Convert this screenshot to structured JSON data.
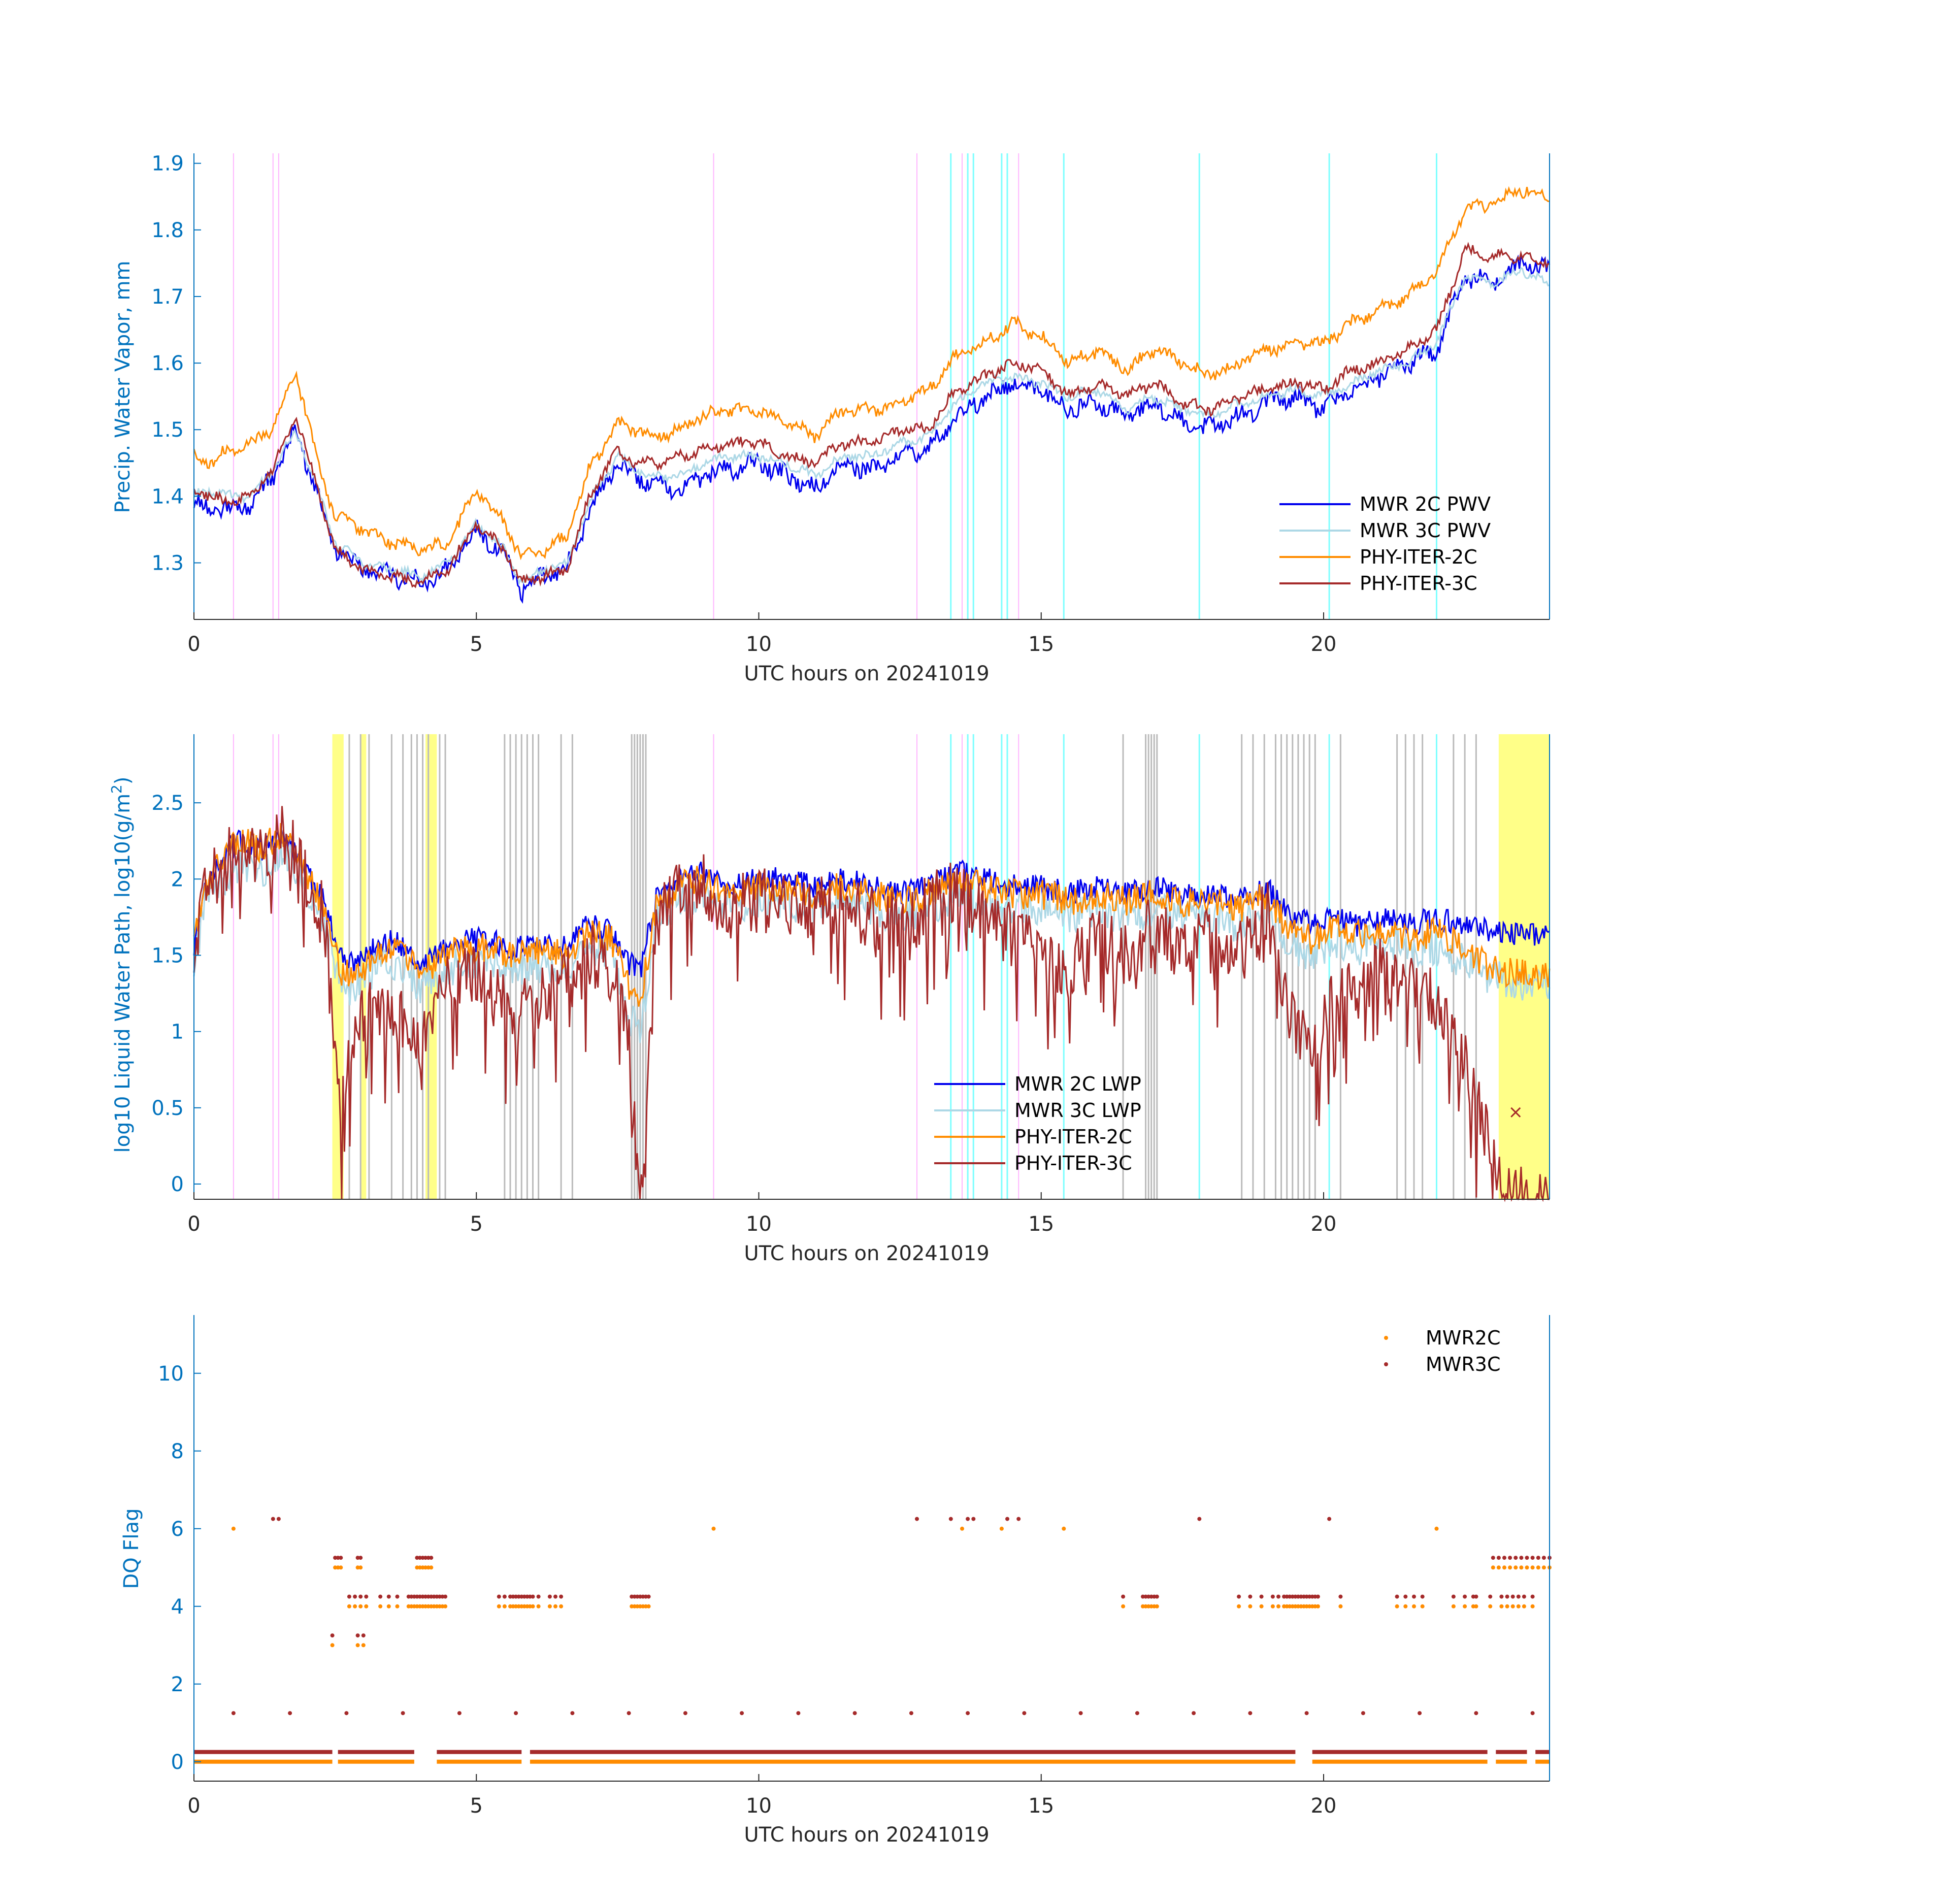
{
  "colors": {
    "mwr2c": "#0000ee",
    "mwr3c": "#add8e6",
    "phy2c": "#ff8c00",
    "phy3c": "#a52a2a",
    "axis_label": "#0072bd",
    "cyan_marker": "#7fffff",
    "pink_marker": "#ffb6ff",
    "gray_marker": "#bbbbbb",
    "yellow_marker": "#ffff55"
  },
  "chart_data": [
    {
      "id": "pwv",
      "type": "line",
      "xlabel": "UTC hours on 20241019",
      "ylabel": "Precip. Water Vapor, mm",
      "xlim": [
        0,
        24
      ],
      "ylim": [
        1.215,
        1.915
      ],
      "xticks": [
        0,
        5,
        10,
        15,
        20
      ],
      "yticks": [
        1.3,
        1.4,
        1.5,
        1.6,
        1.7,
        1.8,
        1.9
      ],
      "grid": false,
      "legend": "bottom-right",
      "x": [
        0,
        0.3,
        0.6,
        1.0,
        1.4,
        1.8,
        2.2,
        2.5,
        3.0,
        3.5,
        4.0,
        4.5,
        5.0,
        5.5,
        5.8,
        6.2,
        6.6,
        7.0,
        7.5,
        7.8,
        8.2,
        8.6,
        9.0,
        9.5,
        10.0,
        10.5,
        11.0,
        11.5,
        12.0,
        12.5,
        13.0,
        13.5,
        14.0,
        14.5,
        15.0,
        15.5,
        16.0,
        16.5,
        17.0,
        17.5,
        18.0,
        18.5,
        19.0,
        19.5,
        20.0,
        20.5,
        21.0,
        21.5,
        22.0,
        22.5,
        23.0,
        23.5,
        24.0
      ],
      "series": [
        {
          "name": "MWR 2C PWV",
          "color_key": "mwr2c",
          "values": [
            1.39,
            1.38,
            1.38,
            1.39,
            1.43,
            1.5,
            1.4,
            1.32,
            1.29,
            1.28,
            1.27,
            1.29,
            1.35,
            1.31,
            1.26,
            1.28,
            1.29,
            1.38,
            1.45,
            1.43,
            1.42,
            1.41,
            1.43,
            1.44,
            1.45,
            1.43,
            1.41,
            1.45,
            1.44,
            1.46,
            1.47,
            1.52,
            1.55,
            1.57,
            1.56,
            1.53,
            1.54,
            1.52,
            1.54,
            1.51,
            1.5,
            1.52,
            1.54,
            1.55,
            1.53,
            1.56,
            1.58,
            1.6,
            1.62,
            1.73,
            1.72,
            1.75,
            1.74
          ]
        },
        {
          "name": "MWR 3C PWV",
          "color_key": "mwr3c",
          "values": [
            1.4,
            1.41,
            1.4,
            1.4,
            1.44,
            1.5,
            1.41,
            1.33,
            1.3,
            1.29,
            1.28,
            1.3,
            1.36,
            1.32,
            1.27,
            1.29,
            1.3,
            1.39,
            1.46,
            1.44,
            1.43,
            1.43,
            1.45,
            1.46,
            1.46,
            1.45,
            1.43,
            1.46,
            1.46,
            1.48,
            1.49,
            1.54,
            1.57,
            1.58,
            1.57,
            1.55,
            1.56,
            1.53,
            1.55,
            1.53,
            1.52,
            1.54,
            1.55,
            1.56,
            1.55,
            1.57,
            1.59,
            1.6,
            1.63,
            1.73,
            1.72,
            1.74,
            1.72
          ]
        },
        {
          "name": "PHY-ITER-2C",
          "color_key": "phy2c",
          "values": [
            1.46,
            1.45,
            1.47,
            1.48,
            1.5,
            1.59,
            1.45,
            1.37,
            1.35,
            1.33,
            1.32,
            1.33,
            1.41,
            1.36,
            1.31,
            1.32,
            1.34,
            1.44,
            1.51,
            1.5,
            1.49,
            1.5,
            1.52,
            1.53,
            1.53,
            1.51,
            1.49,
            1.53,
            1.53,
            1.54,
            1.56,
            1.61,
            1.63,
            1.66,
            1.64,
            1.6,
            1.62,
            1.59,
            1.62,
            1.6,
            1.58,
            1.6,
            1.62,
            1.63,
            1.63,
            1.66,
            1.68,
            1.7,
            1.74,
            1.83,
            1.84,
            1.86,
            1.85
          ]
        },
        {
          "name": "PHY-ITER-3C",
          "color_key": "phy3c",
          "values": [
            1.41,
            1.4,
            1.39,
            1.4,
            1.44,
            1.52,
            1.41,
            1.32,
            1.29,
            1.28,
            1.27,
            1.29,
            1.36,
            1.32,
            1.27,
            1.28,
            1.29,
            1.4,
            1.47,
            1.45,
            1.45,
            1.46,
            1.47,
            1.48,
            1.48,
            1.46,
            1.45,
            1.48,
            1.48,
            1.5,
            1.5,
            1.56,
            1.58,
            1.6,
            1.59,
            1.55,
            1.57,
            1.55,
            1.57,
            1.54,
            1.53,
            1.55,
            1.56,
            1.57,
            1.56,
            1.59,
            1.6,
            1.62,
            1.65,
            1.77,
            1.76,
            1.76,
            1.75
          ]
        }
      ],
      "vlines_cyan": [
        13.4,
        13.7,
        13.8,
        14.3,
        14.4,
        15.4,
        17.8,
        20.1,
        22.0
      ],
      "vlines_pink": [
        0.7,
        1.4,
        1.5,
        9.2,
        12.8,
        13.6,
        14.6
      ]
    },
    {
      "id": "lwp",
      "type": "line",
      "xlabel": "UTC hours on 20241019",
      "ylabel": "log10 Liquid Water Path, log10(g/m",
      "ylabel_sup": "2",
      "ylabel_tail": ")",
      "xlim": [
        0,
        24
      ],
      "ylim": [
        -0.1,
        2.95
      ],
      "xticks": [
        0,
        5,
        10,
        15,
        20
      ],
      "yticks": [
        0,
        0.5,
        1,
        1.5,
        2,
        2.5
      ],
      "grid": false,
      "legend": "bottom-center",
      "x": [
        0,
        0.2,
        0.5,
        0.8,
        1.2,
        1.6,
        1.9,
        2.3,
        2.6,
        2.8,
        3.2,
        3.6,
        4.0,
        4.3,
        4.7,
        5.2,
        5.6,
        6.0,
        6.5,
        7.0,
        7.4,
        7.7,
        7.9,
        8.2,
        8.6,
        9.0,
        9.5,
        10.0,
        10.5,
        11.0,
        11.5,
        12.0,
        12.5,
        13.0,
        13.5,
        14.0,
        14.5,
        15.0,
        15.5,
        16.0,
        16.5,
        17.0,
        17.5,
        18.0,
        18.5,
        19.0,
        19.4,
        19.8,
        20.2,
        20.6,
        21.0,
        21.5,
        22.0,
        22.5,
        23.0,
        23.5,
        24.0
      ],
      "series": [
        {
          "name": "MWR 2C LWP",
          "color_key": "mwr2c",
          "values": [
            1.55,
            1.95,
            2.15,
            2.25,
            2.2,
            2.3,
            2.1,
            1.85,
            1.5,
            1.45,
            1.55,
            1.6,
            1.45,
            1.5,
            1.6,
            1.6,
            1.55,
            1.6,
            1.55,
            1.7,
            1.65,
            1.45,
            1.4,
            1.9,
            2.0,
            2.05,
            1.95,
            2.0,
            2.0,
            1.95,
            2.0,
            1.95,
            1.9,
            1.95,
            2.05,
            2.0,
            1.95,
            1.95,
            1.9,
            1.95,
            1.9,
            1.95,
            1.9,
            1.9,
            1.85,
            1.95,
            1.75,
            1.7,
            1.75,
            1.7,
            1.75,
            1.7,
            1.75,
            1.7,
            1.65,
            1.63,
            1.63
          ]
        },
        {
          "name": "MWR 3C LWP",
          "color_key": "mwr3c",
          "values": [
            1.4,
            1.85,
            2.0,
            2.1,
            2.05,
            2.2,
            2.0,
            1.7,
            1.3,
            1.25,
            1.4,
            1.45,
            1.3,
            1.35,
            1.45,
            1.45,
            1.4,
            1.45,
            1.4,
            1.55,
            1.5,
            1.1,
            1.0,
            1.75,
            1.85,
            1.9,
            1.8,
            1.85,
            1.85,
            1.8,
            1.85,
            1.8,
            1.75,
            1.8,
            1.9,
            1.85,
            1.8,
            1.8,
            1.75,
            1.8,
            1.75,
            1.8,
            1.75,
            1.75,
            1.7,
            1.8,
            1.55,
            1.5,
            1.6,
            1.55,
            1.6,
            1.55,
            1.55,
            1.45,
            1.35,
            1.32,
            1.3
          ]
        },
        {
          "name": "PHY-ITER-2C",
          "color_key": "phy2c",
          "values": [
            1.6,
            1.95,
            2.15,
            2.25,
            2.2,
            2.3,
            2.1,
            1.8,
            1.4,
            1.35,
            1.5,
            1.55,
            1.4,
            1.45,
            1.55,
            1.55,
            1.5,
            1.55,
            1.5,
            1.65,
            1.6,
            1.3,
            1.2,
            1.85,
            1.95,
            2.0,
            1.9,
            1.95,
            1.95,
            1.9,
            1.95,
            1.9,
            1.85,
            1.9,
            2.0,
            1.95,
            1.9,
            1.9,
            1.85,
            1.9,
            1.85,
            1.9,
            1.85,
            1.85,
            1.8,
            1.9,
            1.65,
            1.6,
            1.7,
            1.65,
            1.65,
            1.6,
            1.65,
            1.55,
            1.4,
            1.38,
            1.37
          ]
        },
        {
          "name": "PHY-ITER-3C",
          "color_key": "phy3c",
          "values": [
            1.55,
            1.9,
            2.1,
            2.2,
            2.15,
            2.3,
            2.05,
            1.75,
            0.4,
            1.0,
            1.2,
            1.1,
            0.9,
            1.2,
            1.4,
            1.3,
            1.1,
            1.2,
            1.3,
            1.5,
            1.4,
            0.9,
            -0.1,
            1.8,
            1.9,
            1.95,
            1.8,
            1.85,
            1.85,
            1.8,
            1.85,
            1.75,
            1.7,
            1.8,
            1.95,
            1.8,
            1.6,
            1.5,
            1.4,
            1.6,
            1.5,
            1.7,
            1.5,
            1.6,
            1.5,
            1.8,
            1.1,
            0.9,
            1.3,
            1.2,
            1.4,
            1.3,
            1.2,
            0.8,
            0.2,
            -0.1,
            -0.1
          ]
        }
      ],
      "vlines_cyan": [
        13.4,
        13.7,
        13.8,
        14.3,
        14.4,
        15.4,
        17.8,
        20.1,
        22.0
      ],
      "vlines_pink": [
        0.7,
        1.4,
        1.5,
        9.2,
        12.8,
        13.6,
        14.6
      ],
      "vlines_gray": [
        2.75,
        2.95,
        3.1,
        3.5,
        3.7,
        3.85,
        3.95,
        4.05,
        4.15,
        4.35,
        4.45,
        5.5,
        5.6,
        5.7,
        5.8,
        5.9,
        6.0,
        6.1,
        6.5,
        6.7,
        7.75,
        7.8,
        7.85,
        7.9,
        7.95,
        8.0,
        16.45,
        16.85,
        16.9,
        16.95,
        17.0,
        17.05,
        18.55,
        18.75,
        18.95,
        19.15,
        19.25,
        19.35,
        19.45,
        19.55,
        19.65,
        19.75,
        19.85,
        20.3,
        21.3,
        21.45,
        21.6,
        21.75,
        22.3,
        22.5,
        22.7
      ],
      "yellow_bands": [
        [
          2.45,
          2.65
        ],
        [
          2.95,
          3.05
        ],
        [
          4.1,
          4.3
        ],
        [
          23.1,
          24.0
        ]
      ],
      "marker_x": {
        "x": 23.4,
        "y": 0.47
      }
    },
    {
      "id": "dq",
      "type": "scatter",
      "xlabel": "UTC hours on 20241019",
      "ylabel": "DQ Flag",
      "xlim": [
        0,
        24
      ],
      "ylim": [
        -0.5,
        11.5
      ],
      "xticks": [
        0,
        5,
        10,
        15,
        20
      ],
      "yticks": [
        0,
        2,
        4,
        6,
        8,
        10
      ],
      "grid": false,
      "legend": "top-right",
      "series": [
        {
          "name": "MWR2C",
          "color_key": "phy2c"
        },
        {
          "name": "MWR3C",
          "color_key": "phy3c"
        }
      ],
      "flag0_gaps": [
        [
          2.45,
          2.55
        ],
        [
          3.9,
          4.3
        ],
        [
          5.8,
          5.95
        ],
        [
          19.5,
          19.8
        ],
        [
          22.9,
          23.05
        ],
        [
          23.6,
          23.75
        ]
      ],
      "flag1_x": [
        0.7,
        1.7,
        2.7,
        3.7,
        4.7,
        5.7,
        6.7,
        7.7,
        8.7,
        9.7,
        10.7,
        11.7,
        12.7,
        13.7,
        14.7,
        15.7,
        16.7,
        17.7,
        18.7,
        19.7,
        20.7,
        21.7,
        22.7,
        23.7
      ],
      "flag3_x": [
        2.45,
        2.9,
        3.0
      ],
      "flag4_x": [
        2.75,
        2.85,
        2.95,
        3.05,
        3.3,
        3.45,
        3.6,
        3.8,
        3.85,
        3.9,
        3.95,
        4.0,
        4.05,
        4.1,
        4.15,
        4.2,
        4.25,
        4.3,
        4.35,
        4.4,
        4.45,
        5.4,
        5.5,
        5.6,
        5.65,
        5.7,
        5.75,
        5.8,
        5.85,
        5.9,
        5.95,
        6.0,
        6.1,
        6.3,
        6.4,
        6.5,
        7.75,
        7.8,
        7.85,
        7.9,
        7.95,
        8.0,
        8.05,
        16.45,
        16.8,
        16.85,
        16.9,
        16.95,
        17.0,
        17.05,
        18.5,
        18.7,
        18.9,
        19.1,
        19.2,
        19.3,
        19.35,
        19.4,
        19.45,
        19.5,
        19.55,
        19.6,
        19.65,
        19.7,
        19.75,
        19.8,
        19.85,
        19.9,
        20.3,
        21.3,
        21.45,
        21.6,
        21.75,
        22.3,
        22.5,
        22.65,
        22.7,
        22.95,
        23.15,
        23.25,
        23.35,
        23.45,
        23.55,
        23.7
      ],
      "flag5_x": [
        2.5,
        2.55,
        2.6,
        2.9,
        2.95,
        3.95,
        4.0,
        4.05,
        4.1,
        4.15,
        4.2,
        23.0,
        23.1,
        23.2,
        23.3,
        23.4,
        23.5,
        23.6,
        23.7,
        23.8,
        23.9,
        24.0
      ],
      "flag6_x": [
        0.7,
        1.4,
        1.5,
        9.2,
        12.8,
        13.4,
        13.6,
        13.7,
        13.8,
        14.3,
        14.4,
        14.6,
        15.4,
        17.8,
        20.1,
        22.0
      ]
    }
  ]
}
